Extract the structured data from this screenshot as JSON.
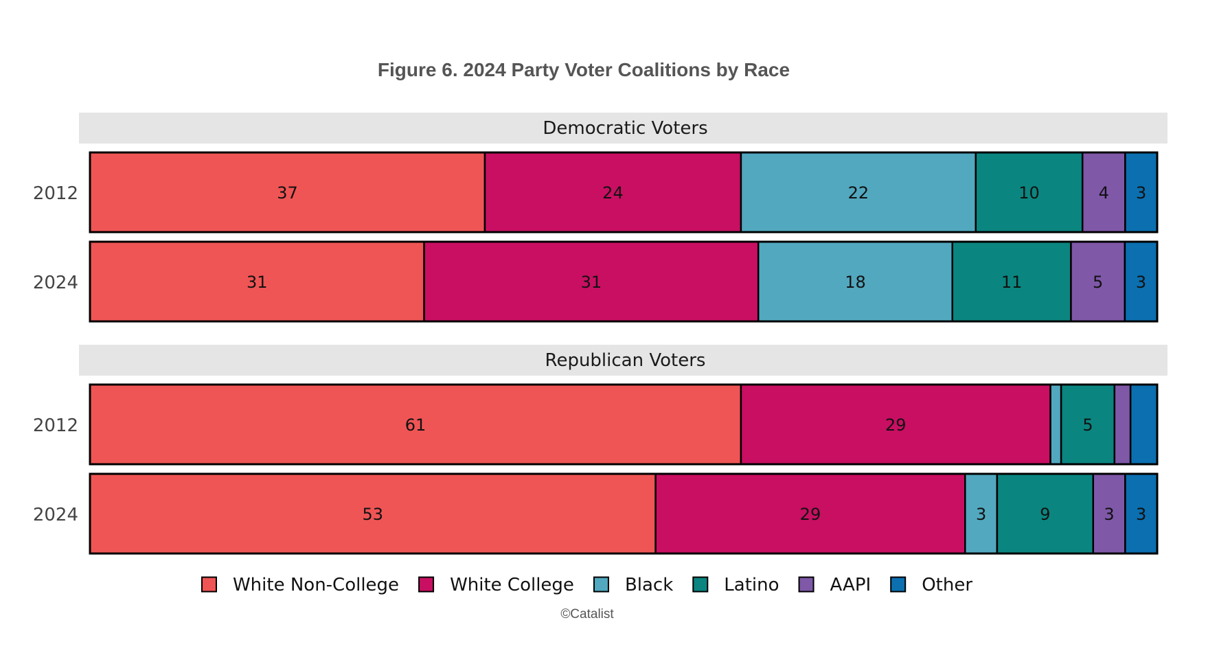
{
  "chart_data": {
    "type": "bar",
    "orientation": "horizontal",
    "stacked": true,
    "title": "Figure 6. 2024 Party Voter Coalitions by Race",
    "source": "©Catalist",
    "legend_position": "bottom",
    "legend": [
      {
        "name": "White Non-College",
        "color": "#EF5555"
      },
      {
        "name": "White College",
        "color": "#C80F62"
      },
      {
        "name": "Black",
        "color": "#52A8BF"
      },
      {
        "name": "Latino",
        "color": "#0B8580"
      },
      {
        "name": "AAPI",
        "color": "#7F58A8"
      },
      {
        "name": "Other",
        "color": "#0B6FB0"
      }
    ],
    "panels": [
      {
        "title": "Democratic Voters",
        "bars": [
          {
            "year": "2012",
            "values": [
              37,
              24,
              22,
              10,
              4,
              3
            ],
            "labels": [
              "37",
              "24",
              "22",
              "10",
              "4",
              "3"
            ]
          },
          {
            "year": "2024",
            "values": [
              31,
              31,
              18,
              11,
              5,
              3
            ],
            "labels": [
              "31",
              "31",
              "18",
              "11",
              "5",
              "3"
            ]
          }
        ]
      },
      {
        "title": "Republican Voters",
        "bars": [
          {
            "year": "2012",
            "values": [
              61,
              29,
              1,
              5,
              1.5,
              2.5
            ],
            "labels": [
              "61",
              "29",
              "",
              "5",
              "",
              ""
            ]
          },
          {
            "year": "2024",
            "values": [
              53,
              29,
              3,
              9,
              3,
              3
            ],
            "labels": [
              "53",
              "29",
              "3",
              "9",
              "3",
              "3"
            ]
          }
        ]
      }
    ]
  }
}
